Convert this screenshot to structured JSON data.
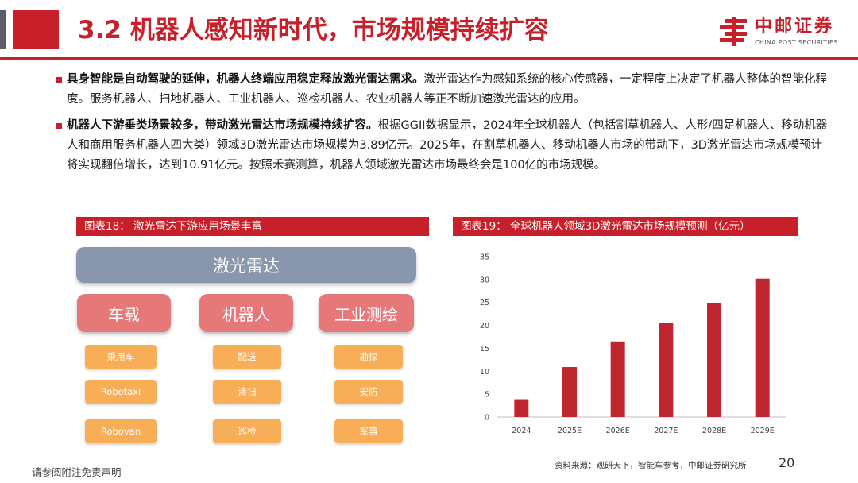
{
  "header": {
    "title": "3.2 机器人感知新时代，市场规模持续扩容",
    "logo_cn": "中邮证券",
    "logo_en": "CHINA POST SECURITIES"
  },
  "body": {
    "para1_bold": "具身智能是自动驾驶的延伸，机器人终端应用稳定释放激光雷达需求。",
    "para1_text": "激光雷达作为感知系统的核心传感器，一定程度上决定了机器人整体的智能化程度。服务机器人、扫地机器人、工业机器人、巡检机器人、农业机器人等正不断加速激光雷达的应用。",
    "para2_bold": "机器人下游垂类场景较多，带动激光雷达市场规模持续扩容。",
    "para2_text": "根据GGII数据显示，2024年全球机器人（包括割草机器人、人形/四足机器人、移动机器人和商用服务机器人四大类）领域3D激光雷达市场规模为3.89亿元。2025年，在割草机器人、移动机器人市场的带动下，3D激光雷达市场规模预计将实现翻倍增长，达到10.91亿元。按照禾赛测算，机器人领域激光雷达市场最终会是100亿的市场规模。"
  },
  "figure18": {
    "title": "图表18：   激光雷达下游应用场景丰富",
    "top": "激光雷达",
    "columns": [
      {
        "label": "车载",
        "items": [
          "乘用车",
          "Robotaxi",
          "Robovan"
        ]
      },
      {
        "label": "机器人",
        "items": [
          "配送",
          "清扫",
          "巡检"
        ]
      },
      {
        "label": "工业测绘",
        "items": [
          "勘探",
          "安防",
          "军事"
        ]
      }
    ]
  },
  "figure19": {
    "title": "图表19：   全球机器人领域3D激光雷达市场规模预测（亿元）"
  },
  "chart_data": {
    "type": "bar",
    "categories": [
      "2024",
      "2025E",
      "2026E",
      "2027E",
      "2028E",
      "2029E"
    ],
    "values": [
      3.89,
      10.91,
      16.5,
      20.5,
      24.8,
      30.2
    ],
    "ylim": [
      0,
      35
    ],
    "yticks": [
      0,
      5,
      10,
      15,
      20,
      25,
      30,
      35
    ],
    "bar_color": "#c0262d",
    "grid": false
  },
  "footer": {
    "disclaimer": "请参阅附注免责声明",
    "source": "资料来源：观研天下，智能车参考，中邮证券研究所",
    "page": "20"
  }
}
